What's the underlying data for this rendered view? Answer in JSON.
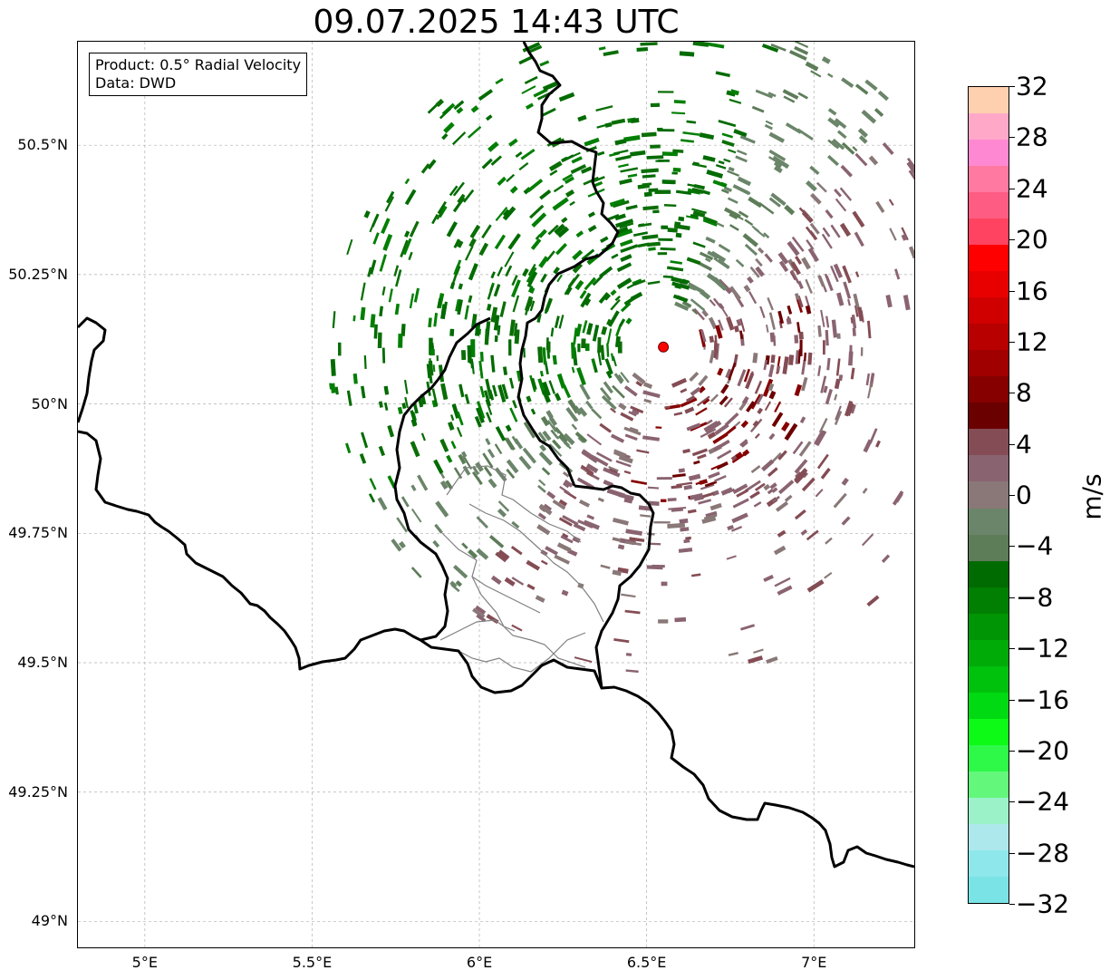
{
  "title": "09.07.2025 14:43 UTC",
  "info": {
    "product": "Product: 0.5° Radial Velocity",
    "source": "Data: DWD"
  },
  "map": {
    "lon_range": [
      4.8,
      7.3
    ],
    "lat_range": [
      48.95,
      50.7
    ],
    "x_ticks": [
      {
        "value": 5.0,
        "label": "5°E"
      },
      {
        "value": 5.5,
        "label": "5.5°E"
      },
      {
        "value": 6.0,
        "label": "6°E"
      },
      {
        "value": 6.5,
        "label": "6.5°E"
      },
      {
        "value": 7.0,
        "label": "7°E"
      }
    ],
    "y_ticks": [
      {
        "value": 50.5,
        "label": "50.5°N"
      },
      {
        "value": 50.25,
        "label": "50.25°N"
      },
      {
        "value": 50.0,
        "label": "50°N"
      },
      {
        "value": 49.75,
        "label": "49.75°N"
      },
      {
        "value": 49.5,
        "label": "49.5°N"
      },
      {
        "value": 49.25,
        "label": "49.25°N"
      },
      {
        "value": 49.0,
        "label": "49°N"
      }
    ],
    "radar_site": {
      "lon": 6.55,
      "lat": 50.11,
      "color": "#ff0000"
    },
    "gridline_color": "#b0b0b0",
    "border_color": "#000000",
    "admin_border_color": "#808080"
  },
  "colorbar": {
    "label": "m/s",
    "min": -32,
    "max": 32,
    "ticks": [
      {
        "value": 32,
        "label": "32"
      },
      {
        "value": 28,
        "label": "28"
      },
      {
        "value": 24,
        "label": "24"
      },
      {
        "value": 20,
        "label": "20"
      },
      {
        "value": 16,
        "label": "16"
      },
      {
        "value": 12,
        "label": "12"
      },
      {
        "value": 8,
        "label": "8"
      },
      {
        "value": 4,
        "label": "4"
      },
      {
        "value": 0,
        "label": "0"
      },
      {
        "value": -4,
        "label": "−4"
      },
      {
        "value": -8,
        "label": "−8"
      },
      {
        "value": -12,
        "label": "−12"
      },
      {
        "value": -16,
        "label": "−16"
      },
      {
        "value": -20,
        "label": "−20"
      },
      {
        "value": -24,
        "label": "−24"
      },
      {
        "value": -28,
        "label": "−28"
      },
      {
        "value": -32,
        "label": "−32"
      }
    ],
    "colors": [
      "#7ae3e6",
      "#8ee8eb",
      "#ade9ec",
      "#9bf2c9",
      "#63f77c",
      "#2ef948",
      "#0dfa17",
      "#00da12",
      "#00c10c",
      "#00ab08",
      "#009504",
      "#007f02",
      "#006b00",
      "#5d7c58",
      "#6a8569",
      "#897877",
      "#8a6371",
      "#844c54",
      "#6b0000",
      "#860000",
      "#a00000",
      "#b80000",
      "#d00000",
      "#e80000",
      "#ff0000",
      "#ff4360",
      "#ff5c83",
      "#ff79a0",
      "#ff88d2",
      "#ffa8c8",
      "#ffd0b0"
    ]
  }
}
